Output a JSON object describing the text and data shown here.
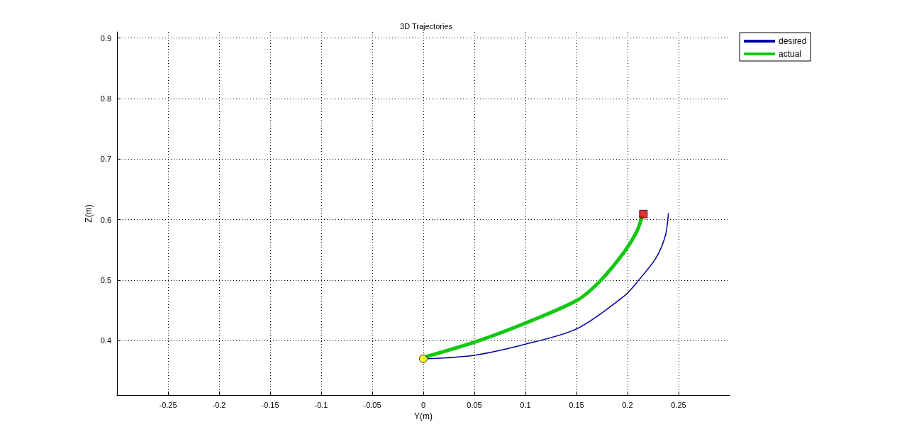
{
  "chart_data": {
    "type": "line",
    "title": "3D Trajectories",
    "xlabel": "Y(m)",
    "ylabel": "Z(m)",
    "xlim": [
      -0.3,
      0.3
    ],
    "xticks": [
      -0.25,
      -0.2,
      -0.15,
      -0.1,
      -0.05,
      0,
      0.05,
      0.1,
      0.15,
      0.2,
      0.25
    ],
    "ylim": [
      0.31,
      0.91
    ],
    "yticks": [
      0.4,
      0.5,
      0.6,
      0.7,
      0.8,
      0.9
    ],
    "grid": true,
    "legend": "top right",
    "marker": "none",
    "line_style": "solid",
    "series": [
      {
        "name": "desired",
        "color": "#0000a0",
        "x": [
          0.005,
          0.051,
          0.1,
          0.151,
          0.197,
          0.211,
          0.228,
          0.237,
          0.24
        ],
        "values": [
          0.37,
          0.376,
          0.394,
          0.42,
          0.474,
          0.5,
          0.537,
          0.573,
          0.61
        ]
      },
      {
        "name": "actual",
        "color": "#10c810",
        "x": [
          0.002,
          0.051,
          0.1,
          0.151,
          0.174,
          0.197,
          0.209,
          0.214
        ],
        "values": [
          0.373,
          0.398,
          0.429,
          0.467,
          0.5,
          0.547,
          0.58,
          0.604
        ]
      },
      {
        "type": "scatter",
        "marker": "circle",
        "color": "#ffff00",
        "x": [
          0
        ],
        "values": [
          0.37
        ]
      },
      {
        "type": "scatter",
        "marker": "square",
        "color": "#e00000",
        "x": [
          0.2155
        ],
        "values": [
          0.609
        ]
      }
    ]
  }
}
